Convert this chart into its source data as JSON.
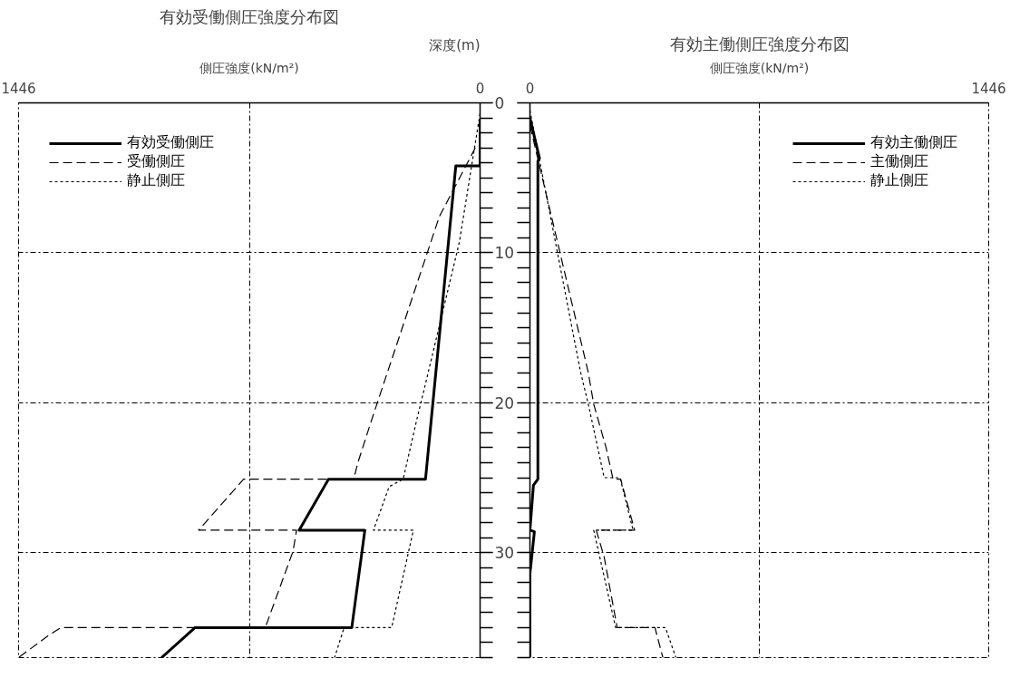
{
  "chart_data": [
    {
      "type": "line",
      "title": "有効受働側圧強度分布図",
      "xlabel": "側圧強度(kN/m²)",
      "ylabel": "深度(m)",
      "xlim": [
        1446,
        0
      ],
      "ylim": [
        37,
        0
      ],
      "xticks": [
        1446,
        {
          "value": 723,
          "label": null
        },
        0
      ],
      "yticks": [
        0,
        10,
        20,
        30
      ],
      "grid": true,
      "legend": "top left",
      "series": [
        {
          "name": "有効受働側圧",
          "color": "#000000",
          "line_style": "solid",
          "x": [
            0,
            0,
            76,
            171,
            475,
            567,
            361,
            402,
            893,
            998
          ],
          "values": [
            1.2,
            4.2,
            4.2,
            25.1,
            25.1,
            28.5,
            28.5,
            35.0,
            35.0,
            37.0
          ]
        },
        {
          "name": "受働側圧",
          "color": "#000000",
          "line_style": "dashed",
          "x": [
            15,
            128,
            336,
            383,
            396,
            741,
            882,
            575,
            586,
            673,
            1313,
            1351,
            1446
          ],
          "values": [
            3.0,
            7.6,
            20.9,
            24.0,
            25.1,
            25.1,
            28.5,
            28.5,
            29.9,
            35.0,
            35.0,
            35.5,
            37.0
          ]
        },
        {
          "name": "静止側圧",
          "color": "#000000",
          "line_style": "dotted",
          "x": [
            0,
            65,
            174,
            198,
            241,
            285,
            334,
            209,
            277,
            426,
            456
          ],
          "values": [
            0.7,
            9.3,
            19.0,
            21.1,
            25.1,
            25.6,
            28.5,
            28.5,
            35.0,
            35.0,
            37.0
          ]
        }
      ]
    },
    {
      "type": "line",
      "title": "有効主働側圧強度分布図",
      "xlabel": "側圧強度(kN/m²)",
      "xlim": [
        0,
        1446
      ],
      "ylim": [
        37,
        0
      ],
      "xticks": [
        0,
        {
          "value": 723,
          "label": null
        },
        1446
      ],
      "yticks": [
        0,
        10,
        20,
        30
      ],
      "tick_labels": "x",
      "grid": true,
      "legend": "top right",
      "series": [
        {
          "name": "有効主働側圧",
          "color": "#000000",
          "line_style": "solid",
          "x": [
            0,
            30,
            25,
            25,
            11,
            0,
            14,
            0,
            0
          ],
          "values": [
            1.0,
            3.7,
            3.9,
            25.1,
            25.5,
            28.5,
            28.6,
            31.4,
            37.0
          ]
        },
        {
          "name": "主働側圧",
          "color": "#000000",
          "line_style": "dashed",
          "x": [
            0,
            184,
            201,
            240,
            262,
            286,
            330,
            209,
            234,
            275,
            394,
            419
          ],
          "values": [
            1.5,
            18.0,
            20.1,
            23.0,
            25.1,
            25.1,
            28.5,
            28.5,
            30.3,
            35.0,
            35.0,
            37.0
          ]
        },
        {
          "name": "静止側圧",
          "color": "#000000",
          "line_style": "dotted",
          "x": [
            0,
            160,
            184,
            234,
            284,
            325,
            201,
            270,
            427,
            460
          ],
          "values": [
            0.5,
            18.0,
            20.1,
            25.0,
            25.0,
            28.5,
            28.5,
            35.0,
            35.0,
            37.0
          ]
        }
      ]
    }
  ]
}
